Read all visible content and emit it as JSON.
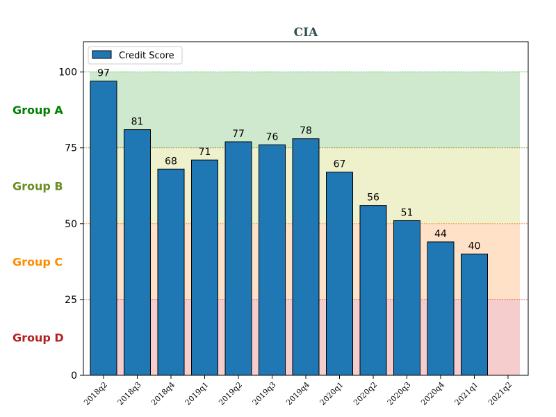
{
  "chart_data": {
    "type": "bar",
    "title": "CIA",
    "xlabel": "",
    "ylabel": "",
    "ylim": [
      0,
      110
    ],
    "yticks": [
      0,
      25,
      50,
      75,
      100
    ],
    "grid": false,
    "legend_placement": "top-left",
    "categories": [
      "2018q2",
      "2018q3",
      "2018q4",
      "2019q1",
      "2019q2",
      "2019q3",
      "2019q4",
      "2020q1",
      "2020q2",
      "2020q3",
      "2020q4",
      "2021q1",
      "2021q2"
    ],
    "series": [
      {
        "name": "Credit Score",
        "color": "#1f77b4",
        "values": [
          97,
          81,
          68,
          71,
          77,
          76,
          78,
          67,
          56,
          51,
          44,
          40,
          null
        ]
      }
    ],
    "bands": [
      {
        "label": "Group A",
        "range": [
          75,
          100
        ],
        "fill": "#2ca02c",
        "line": "#2ca02c",
        "text_color": "#008000"
      },
      {
        "label": "Group B",
        "range": [
          50,
          75
        ],
        "fill": "#bcbd22",
        "line": "#808000",
        "text_color": "#6B8E23"
      },
      {
        "label": "Group C",
        "range": [
          25,
          50
        ],
        "fill": "#ff7f0e",
        "line": "#ff7f0e",
        "text_color": "#FF8C00"
      },
      {
        "label": "Group D",
        "range": [
          0,
          25
        ],
        "fill": "#d62728",
        "line": "#d62728",
        "text_color": "#B22222"
      }
    ]
  }
}
